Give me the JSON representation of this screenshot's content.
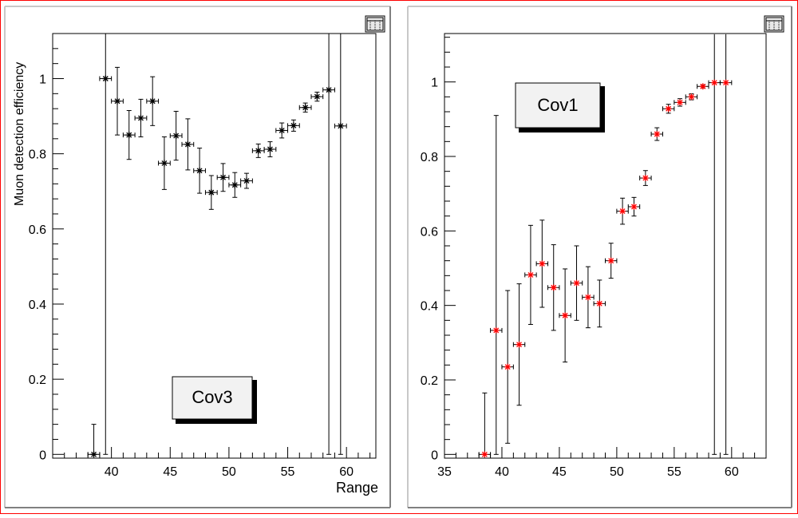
{
  "window": {
    "frame_color": "#ff0000"
  },
  "panels": [
    {
      "id": "left",
      "label_box": "Cov3",
      "ylabel": "Muon detection efficiency",
      "xlabel": "Range",
      "icon": "canvas-editor-icon"
    },
    {
      "id": "right",
      "label_box": "Cov1",
      "ylabel": "",
      "xlabel": "",
      "icon": "canvas-editor-icon"
    }
  ],
  "chart_data": [
    {
      "type": "scatter",
      "title": "",
      "xlabel": "Range",
      "ylabel": "Muon detection efficiency",
      "xlim": [
        35,
        62.5
      ],
      "ylim": [
        -0.01,
        1.12
      ],
      "x_ticks": [
        40,
        45,
        50,
        55,
        60
      ],
      "y_ticks": [
        0,
        0.2,
        0.4,
        0.6,
        0.8,
        1
      ],
      "marker_color": "#000000",
      "grid": false,
      "legend": "none",
      "points": [
        {
          "x": 38.5,
          "y": 0.0,
          "err_low": 0.0,
          "err_high": 0.08
        },
        {
          "x": 39.5,
          "y": 1.0,
          "err_low": 1.0,
          "err_high": 0.12
        },
        {
          "x": 40.5,
          "y": 0.94,
          "err_low": 0.09,
          "err_high": 0.09
        },
        {
          "x": 41.5,
          "y": 0.85,
          "err_low": 0.065,
          "err_high": 0.065
        },
        {
          "x": 42.5,
          "y": 0.895,
          "err_low": 0.05,
          "err_high": 0.05
        },
        {
          "x": 43.5,
          "y": 0.94,
          "err_low": 0.065,
          "err_high": 0.065
        },
        {
          "x": 44.5,
          "y": 0.775,
          "err_low": 0.07,
          "err_high": 0.07
        },
        {
          "x": 45.5,
          "y": 0.848,
          "err_low": 0.065,
          "err_high": 0.065
        },
        {
          "x": 46.5,
          "y": 0.825,
          "err_low": 0.068,
          "err_high": 0.068
        },
        {
          "x": 47.5,
          "y": 0.755,
          "err_low": 0.06,
          "err_high": 0.06
        },
        {
          "x": 48.5,
          "y": 0.697,
          "err_low": 0.045,
          "err_high": 0.045
        },
        {
          "x": 49.5,
          "y": 0.737,
          "err_low": 0.037,
          "err_high": 0.037
        },
        {
          "x": 50.5,
          "y": 0.717,
          "err_low": 0.033,
          "err_high": 0.033
        },
        {
          "x": 51.5,
          "y": 0.728,
          "err_low": 0.02,
          "err_high": 0.02
        },
        {
          "x": 52.5,
          "y": 0.808,
          "err_low": 0.018,
          "err_high": 0.018
        },
        {
          "x": 53.5,
          "y": 0.812,
          "err_low": 0.02,
          "err_high": 0.02
        },
        {
          "x": 54.5,
          "y": 0.862,
          "err_low": 0.02,
          "err_high": 0.02
        },
        {
          "x": 55.5,
          "y": 0.875,
          "err_low": 0.015,
          "err_high": 0.015
        },
        {
          "x": 56.5,
          "y": 0.923,
          "err_low": 0.012,
          "err_high": 0.012
        },
        {
          "x": 57.5,
          "y": 0.952,
          "err_low": 0.012,
          "err_high": 0.012
        },
        {
          "x": 58.5,
          "y": 0.97,
          "err_low": 0.97,
          "err_high": 0.15
        },
        {
          "x": 59.5,
          "y": 0.874,
          "err_low": 0.874,
          "err_high": 0.25
        }
      ]
    },
    {
      "type": "scatter",
      "title": "",
      "xlabel": "",
      "ylabel": "",
      "xlim": [
        35,
        63
      ],
      "ylim": [
        -0.01,
        1.13
      ],
      "x_ticks": [
        35,
        40,
        45,
        50,
        55,
        60
      ],
      "y_ticks": [
        0,
        0.2,
        0.4,
        0.6,
        0.8,
        1
      ],
      "marker_color": "#ff0000",
      "grid": false,
      "legend": "none",
      "points": [
        {
          "x": 38.5,
          "y": 0.0,
          "err_low": 0.0,
          "err_high": 0.165
        },
        {
          "x": 39.5,
          "y": 0.333,
          "err_low": 0.333,
          "err_high": 0.577
        },
        {
          "x": 40.5,
          "y": 0.235,
          "err_low": 0.205,
          "err_high": 0.205
        },
        {
          "x": 41.5,
          "y": 0.295,
          "err_low": 0.163,
          "err_high": 0.163
        },
        {
          "x": 42.5,
          "y": 0.482,
          "err_low": 0.133,
          "err_high": 0.133
        },
        {
          "x": 43.5,
          "y": 0.512,
          "err_low": 0.117,
          "err_high": 0.117
        },
        {
          "x": 44.5,
          "y": 0.448,
          "err_low": 0.115,
          "err_high": 0.115
        },
        {
          "x": 45.5,
          "y": 0.373,
          "err_low": 0.125,
          "err_high": 0.125
        },
        {
          "x": 46.5,
          "y": 0.46,
          "err_low": 0.1,
          "err_high": 0.1
        },
        {
          "x": 47.5,
          "y": 0.422,
          "err_low": 0.082,
          "err_high": 0.082
        },
        {
          "x": 48.5,
          "y": 0.405,
          "err_low": 0.063,
          "err_high": 0.063
        },
        {
          "x": 49.5,
          "y": 0.52,
          "err_low": 0.047,
          "err_high": 0.047
        },
        {
          "x": 50.5,
          "y": 0.653,
          "err_low": 0.035,
          "err_high": 0.035
        },
        {
          "x": 51.5,
          "y": 0.665,
          "err_low": 0.025,
          "err_high": 0.025
        },
        {
          "x": 52.5,
          "y": 0.742,
          "err_low": 0.02,
          "err_high": 0.02
        },
        {
          "x": 53.5,
          "y": 0.86,
          "err_low": 0.017,
          "err_high": 0.017
        },
        {
          "x": 54.5,
          "y": 0.928,
          "err_low": 0.012,
          "err_high": 0.012
        },
        {
          "x": 55.5,
          "y": 0.945,
          "err_low": 0.01,
          "err_high": 0.01
        },
        {
          "x": 56.5,
          "y": 0.96,
          "err_low": 0.008,
          "err_high": 0.008
        },
        {
          "x": 57.5,
          "y": 0.988,
          "err_low": 0.004,
          "err_high": 0.004
        },
        {
          "x": 58.5,
          "y": 0.998,
          "err_low": 0.998,
          "err_high": 0.13
        },
        {
          "x": 59.5,
          "y": 0.998,
          "err_low": 0.998,
          "err_high": 0.13
        }
      ]
    }
  ]
}
